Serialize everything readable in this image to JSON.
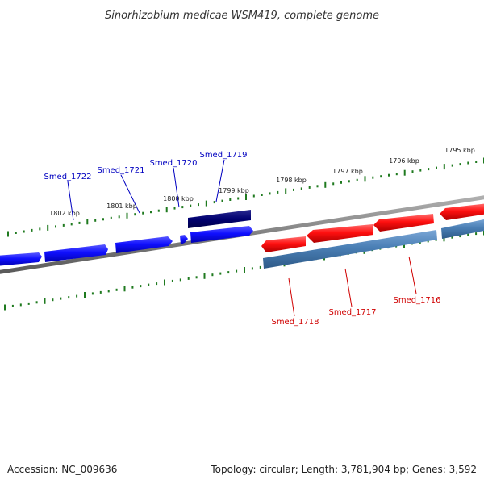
{
  "title": "Sinorhizobium medicae WSM419, complete genome",
  "footer": {
    "accession": "Accession: NC_009636",
    "summary": "Topology: circular; Length: 3,781,904 bp; Genes: 3,592"
  },
  "tick_labels": [
    "1802 kbp",
    "1801 kbp",
    "1800 kbp",
    "1799 kbp",
    "1798 kbp",
    "1797 kbp",
    "1796 kbp",
    "1795 kbp"
  ],
  "genes": {
    "forward_strand": [
      "Smed_1722",
      "Smed_1721",
      "Smed_1720",
      "Smed_1719"
    ],
    "reverse_strand": [
      "Smed_1718",
      "Smed_1717",
      "Smed_1716"
    ]
  },
  "colors": {
    "forward_gene": "#1a1aff",
    "highlighted_gene": "#000080",
    "reverse_gene": "#ff1a1a",
    "reverse_cds": "#4a7fb5",
    "backbone": "#888888",
    "ticks": "#1f7a1f",
    "forward_label": "#0000c0",
    "reverse_label": "#d00000"
  }
}
